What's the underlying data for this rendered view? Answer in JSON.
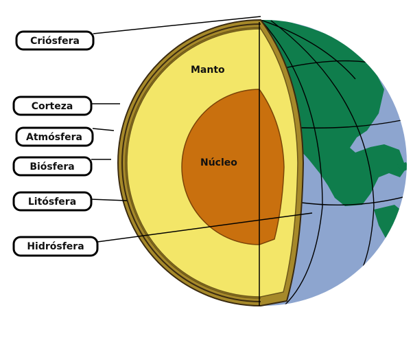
{
  "labels": {
    "criosfera": "Criósfera",
    "corteza": "Corteza",
    "atmosfera": "Atmósfera",
    "biosfera": "Biósfera",
    "litosfera": "Litósfera",
    "hidrosfera": "Hidrósfera"
  },
  "regions": {
    "manto": "Manto",
    "nucleo": "Núcleo"
  },
  "colors": {
    "ocean": "#8da5cf",
    "land": "#0f7d4c",
    "mantle": "#f3e668",
    "core": "#c9700e",
    "crust": "#a6892a",
    "outline": "#3a2a10"
  }
}
